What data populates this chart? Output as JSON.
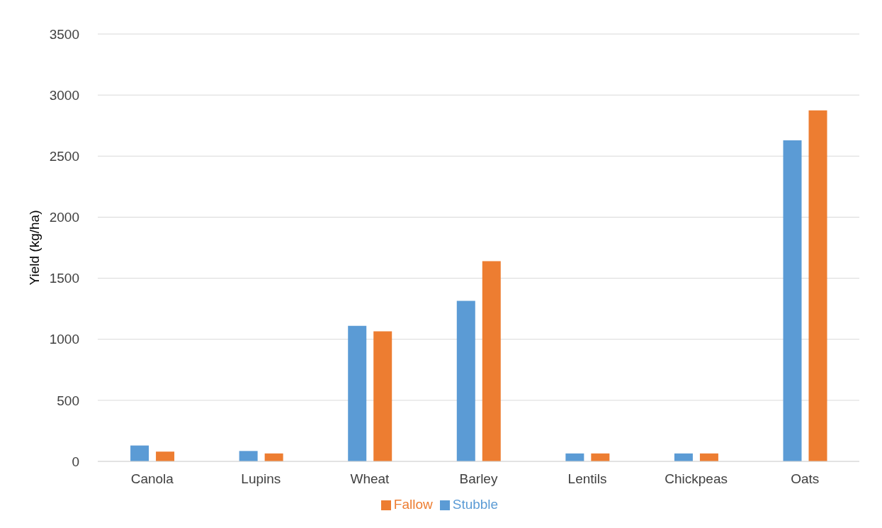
{
  "chart_data": {
    "type": "bar",
    "ylabel": "Yield (kg/ha)",
    "categories": [
      "Canola",
      "Lupins",
      "Wheat",
      "Barley",
      "Lentils",
      "Chickpeas",
      "Oats"
    ],
    "series": [
      {
        "name": "Stubble",
        "color": "#5b9bd5",
        "values": [
          130,
          85,
          1110,
          1315,
          65,
          65,
          2630
        ]
      },
      {
        "name": "Fallow",
        "color": "#ed7d31",
        "values": [
          80,
          65,
          1065,
          1640,
          65,
          65,
          2875
        ]
      }
    ],
    "ylim": [
      0,
      3500
    ],
    "yticks": [
      0,
      500,
      1000,
      1500,
      2000,
      2500,
      3000,
      3500
    ],
    "grid": "y",
    "legend": "bottom"
  }
}
